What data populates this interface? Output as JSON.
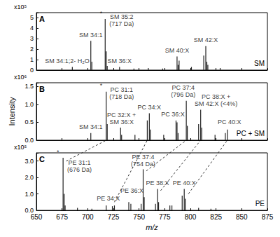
{
  "chart_data": [
    {
      "type": "stick",
      "panel": "A",
      "title": "SM",
      "y_unit": "x10⁵",
      "color": "#222222",
      "x": [
        685,
        703,
        704,
        717,
        718,
        719,
        731,
        745,
        759,
        773,
        787,
        788,
        789,
        801,
        813,
        815,
        816,
        817,
        829
      ],
      "values": [
        0.3,
        2.8,
        0.8,
        4.9,
        1.8,
        0.4,
        0.3,
        0.15,
        0.2,
        0.15,
        1.3,
        0.5,
        0.9,
        0.3,
        1.4,
        2.3,
        0.8,
        0.5,
        0.2
      ],
      "xlim": [
        650,
        875
      ],
      "xticks": [
        650,
        675,
        700,
        725,
        750,
        775,
        800,
        825,
        850,
        875
      ],
      "ylim": [
        0,
        5.5
      ],
      "yticks": [
        0,
        1,
        2,
        3,
        4,
        5
      ],
      "tick_labels": "y",
      "annotations": [
        {
          "x": 680,
          "y": 0.45,
          "text": "SM 34:1;2- H₂O"
        },
        {
          "x": 703,
          "y": 2.95,
          "text": "SM 34:1"
        },
        {
          "x": 713,
          "y": 5.0,
          "text": "*"
        },
        {
          "x": 733,
          "y": 4.0,
          "text": "SM 35:2\n(717 Da)"
        },
        {
          "x": 731,
          "y": 0.45,
          "text": "SM 36:X"
        },
        {
          "x": 787,
          "y": 1.5,
          "text": "SM 40:X"
        },
        {
          "x": 815,
          "y": 2.45,
          "text": "SM 42:X"
        }
      ]
    },
    {
      "type": "stick",
      "panel": "B",
      "title": "PC + SM",
      "y_unit": "x10⁶",
      "ylabel": "Intensity",
      "color": "#222222",
      "x": [
        703,
        718,
        719,
        732,
        733,
        746,
        758,
        760,
        761,
        774,
        786,
        787,
        788,
        796,
        797,
        808,
        810,
        811,
        824,
        834,
        836
      ],
      "values": [
        0.2,
        1.35,
        0.45,
        0.35,
        0.15,
        0.15,
        0.55,
        0.75,
        0.3,
        0.15,
        0.55,
        0.5,
        0.2,
        1.1,
        0.4,
        0.45,
        0.85,
        0.35,
        0.15,
        0.2,
        0.3
      ],
      "xlim": [
        650,
        875
      ],
      "xticks": [
        650,
        675,
        700,
        725,
        750,
        775,
        800,
        825,
        850,
        875
      ],
      "ylim": [
        0,
        1.6
      ],
      "yticks": [
        {
          "value": 0,
          "label": "0.0"
        },
        0.5,
        {
          "value": 1,
          "label": "1.0"
        },
        1.5
      ],
      "tick_labels": "y",
      "annotations": [
        {
          "x": 703,
          "y": 0.25,
          "text": "SM 34:1"
        },
        {
          "x": 713,
          "y": 1.4,
          "text": "*"
        },
        {
          "x": 733,
          "y": 1.1,
          "text": "PC 31:1\n(718 Da)"
        },
        {
          "x": 733,
          "y": 0.4,
          "text": "PC 32:X +\nSM 36:X"
        },
        {
          "x": 760,
          "y": 0.8,
          "text": "PC 34:X"
        },
        {
          "x": 783,
          "y": 0.6,
          "text": "PC 36:X"
        },
        {
          "x": 793,
          "y": 1.15,
          "text": "PC 37:4\n(796 Da)"
        },
        {
          "x": 825,
          "y": 0.9,
          "text": "PC 38:X +\nSM 42:X (<4%)"
        },
        {
          "x": 838,
          "y": 0.4,
          "text": "PC 40:X"
        }
      ]
    },
    {
      "type": "stick",
      "panel": "C",
      "title": "PE",
      "y_unit": "x10⁵",
      "xlabel": "m/z",
      "color": "#222222",
      "x": [
        676,
        677,
        678,
        690,
        704,
        718,
        724,
        726,
        740,
        742,
        752,
        754,
        755,
        766,
        768,
        769,
        780,
        782,
        792,
        794,
        795,
        808,
        820
      ],
      "values": [
        3.2,
        1.0,
        0.3,
        0.15,
        0.1,
        0.3,
        0.25,
        0.3,
        0.5,
        0.4,
        0.4,
        2.5,
        0.8,
        0.4,
        1.3,
        0.5,
        0.3,
        0.3,
        0.9,
        1.3,
        0.7,
        0.15,
        0.1
      ],
      "xlim": [
        650,
        875
      ],
      "xticks": [
        650,
        675,
        700,
        725,
        750,
        775,
        800,
        825,
        850,
        875
      ],
      "ylim": [
        0,
        3.5
      ],
      "yticks": [
        {
          "value": 0,
          "label": "0.0"
        },
        {
          "value": 1,
          "label": "1.0"
        },
        {
          "value": 2,
          "label": "2.0"
        },
        {
          "value": 3,
          "label": "3.0"
        }
      ],
      "annotations": [
        {
          "x": 671,
          "y": 3.3,
          "text": "*"
        },
        {
          "x": 692,
          "y": 2.2,
          "text": "PE 31:1\n(676 Da)"
        },
        {
          "x": 720,
          "y": 0.45,
          "text": "PE 34:X"
        },
        {
          "x": 743,
          "y": 0.95,
          "text": "PE 36:X"
        },
        {
          "x": 754,
          "y": 2.55,
          "text": "PE 37:4\n(754 Da)"
        },
        {
          "x": 768,
          "y": 1.4,
          "text": "PE 38:X"
        },
        {
          "x": 794,
          "y": 1.4,
          "text": "PE 40:X"
        }
      ],
      "links": [
        {
          "from": [
            679,
            3.0
          ],
          "to": [
            718,
            0
          ]
        },
        {
          "from": [
            726,
            0.5
          ],
          "to": [
            758,
            0
          ]
        },
        {
          "from": [
            757,
            2.4
          ],
          "to": [
            796,
            0
          ]
        },
        {
          "from": [
            771,
            1.2
          ],
          "to": [
            810,
            0
          ]
        },
        {
          "from": [
            798,
            1.0
          ],
          "to": [
            836,
            0
          ]
        }
      ]
    }
  ]
}
